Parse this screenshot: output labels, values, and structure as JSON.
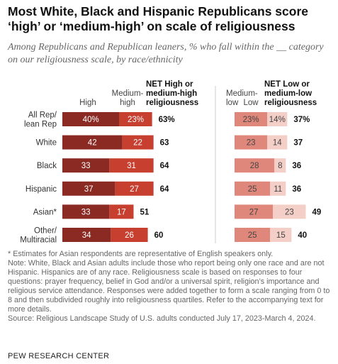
{
  "title": "Most White, Black and Hispanic Republicans score ‘high’ or ‘medium-high’ on scale of religiousness",
  "subtitle": "Among Republicans and Republican leaners, % who fall within the __ category on our religiousness scale, by race/ethnicity",
  "headers": {
    "high": "High",
    "medium_high": [
      "Medium-",
      "high"
    ],
    "net_high": [
      "NET High or",
      "medium-high",
      "religiousness"
    ],
    "medium_low": [
      "Medium-",
      "low"
    ],
    "low": "Low",
    "net_low": [
      "NET Low or",
      "medium-low",
      "religiousness"
    ]
  },
  "colors": {
    "high": "#8b2a22",
    "medium_high": "#c63f2f",
    "medium_low": "#e0877b",
    "low": "#f4cfc8",
    "divider": "#cccccc"
  },
  "chart_data": {
    "type": "bar",
    "stacked": true,
    "categories": [
      [
        "All Rep/",
        "lean Rep"
      ],
      [
        "White"
      ],
      [
        "Black"
      ],
      [
        "Hispanic"
      ],
      [
        "Asian*"
      ],
      [
        "Other/",
        "Multiracial"
      ]
    ],
    "panels": [
      {
        "group": "NET High or medium-high religiousness",
        "series": [
          {
            "name": "High",
            "values": [
              40,
              42,
              33,
              37,
              33,
              34
            ]
          },
          {
            "name": "Medium-high",
            "values": [
              23,
              22,
              31,
              27,
              17,
              26
            ]
          }
        ],
        "net": [
          63,
          63,
          64,
          64,
          51,
          60
        ]
      },
      {
        "group": "NET Low or medium-low religiousness",
        "series": [
          {
            "name": "Medium-low",
            "values": [
              23,
              23,
              28,
              25,
              27,
              25
            ]
          },
          {
            "name": "Low",
            "values": [
              14,
              14,
              8,
              11,
              23,
              15
            ]
          }
        ],
        "net": [
          37,
          37,
          36,
          36,
          49,
          40
        ]
      }
    ],
    "first_row_label_suffix": "%"
  },
  "note": "* Estimates for Asian respondents are representative of English speakers only.\nNote: White, Black and Asian adults include those who report being only one race and are not Hispanic. Hispanics are of any race. Religiousness scale is based on responses to four questions: prayer frequency, belief in God and/or a universal spirit, religion’s importance and religious service attendance. Responses were added together to form a scale ranging from 0 to 8 and then subdivided roughly into religiousness quartiles. Refer to the accompanying text for more details.\nSource: Religious Landscape Study of U.S. adults conducted July 17, 2023-March 4, 2024.",
  "source": "PEW RESEARCH CENTER"
}
